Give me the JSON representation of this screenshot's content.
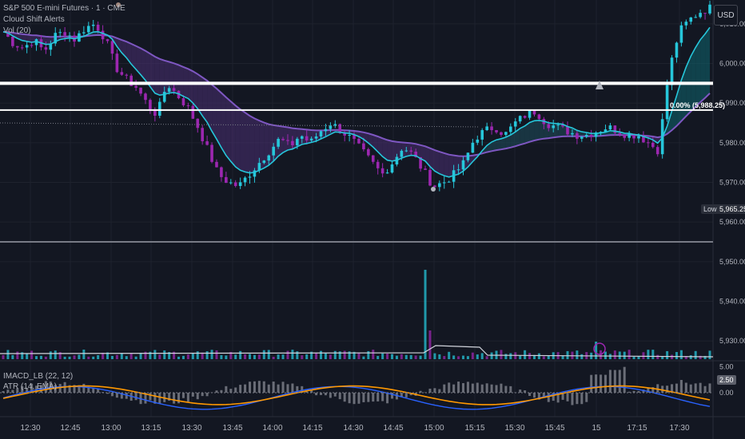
{
  "header": {
    "symbol": "S&P 500 E-mini Futures · 1 · CME",
    "cloud_label": "Cloud Shift Alerts",
    "volume_label": "Vol (20)",
    "macd_label": "IMACD_LB (22, 12)",
    "atr_label": "ATR (14, EMA)",
    "currency_button": "USD"
  },
  "price_axis": {
    "ticks": [
      "6,010.00",
      "6,000.00",
      "5,990.00",
      "5,980.00",
      "5,970.00",
      "5,960.00",
      "5,950.00",
      "5,940.00",
      "5,930.00"
    ],
    "low_tag_label": "Low",
    "low_tag_value": "5,965.25",
    "fib_label": "0.00% (5,988.25)"
  },
  "indicator_axis": {
    "ticks": [
      "5.00",
      "0.00"
    ],
    "current_value": "2.50"
  },
  "time_axis": {
    "ticks": [
      "12:30",
      "12:45",
      "13:00",
      "13:15",
      "13:30",
      "13:45",
      "14:00",
      "14:15",
      "14:30",
      "14:45",
      "15:00",
      "15:15",
      "15:30",
      "15:45",
      "15",
      "17:15",
      "17:30"
    ]
  },
  "colors": {
    "background": "#131722",
    "bull_candle": "#26c6da",
    "bear_candle": "#9c27b0",
    "fast_ma": "#26c6da",
    "slow_ma": "#7e57c2",
    "macd_line": "#2962ff",
    "signal_line": "#ff9800",
    "hist": "#b2b5be",
    "level_line": "#ffffff"
  },
  "chart_data": [
    {
      "type": "candlestick",
      "title": "",
      "x_labels": [
        "12:30",
        "12:45",
        "13:00",
        "13:15",
        "13:30",
        "13:45",
        "14:00",
        "14:15",
        "14:30",
        "14:45",
        "15:00",
        "15:15",
        "15:30",
        "15:45",
        "15",
        "17:15",
        "17:30"
      ],
      "ylim": [
        5925,
        6015
      ],
      "close_path": [
        6008,
        6005,
        6004,
        6006,
        6003,
        6007,
        6008,
        6006,
        6009,
        6010,
        6006,
        5999,
        5996,
        5994,
        5990,
        5987,
        5995,
        5992,
        5989,
        5984,
        5978,
        5972,
        5970,
        5969,
        5972,
        5975,
        5978,
        5981,
        5979,
        5982,
        5980,
        5983,
        5985,
        5983,
        5981,
        5978,
        5975,
        5972,
        5975,
        5979,
        5977,
        5973,
        5969,
        5970,
        5972,
        5975,
        5981,
        5983,
        5984,
        5982,
        5985,
        5987,
        5988,
        5985,
        5984,
        5983,
        5982,
        5982,
        5983,
        5984,
        5983,
        5982,
        5982,
        5980,
        5978,
        5998,
        6008,
        6011,
        6013,
        6014
      ],
      "horizontal_levels": [
        5995,
        5988.25,
        5955
      ],
      "low": 5965.25
    },
    {
      "type": "bar",
      "title": "Vol (20)",
      "note": "volume histogram, spike near 15:00 and at session open"
    },
    {
      "type": "line",
      "title": "IMACD_LB (22, 12) / ATR (14, EMA)",
      "ylim": [
        -5,
        6
      ],
      "ticks": [
        5,
        0
      ],
      "current_value": 2.5
    }
  ]
}
